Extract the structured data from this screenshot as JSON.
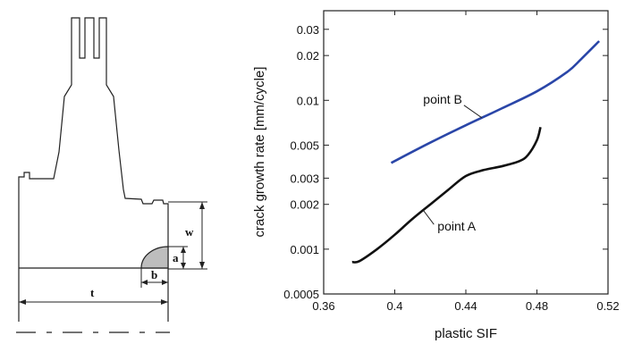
{
  "drawing": {
    "labels": {
      "w": "w",
      "a": "a",
      "b": "b",
      "t": "t"
    }
  },
  "chart_data": {
    "type": "line",
    "title": "",
    "xlabel": "plastic SIF",
    "ylabel": "crack growth rate [mm/cycle]",
    "xscale": "linear",
    "yscale": "log",
    "xlim": [
      0.36,
      0.52
    ],
    "ylim": [
      0.0005,
      0.04
    ],
    "x_ticks": [
      0.36,
      0.4,
      0.44,
      0.48,
      0.52
    ],
    "x_tick_labels": [
      "0.36",
      "0.4",
      "0.44",
      "0.48",
      "0.52"
    ],
    "y_ticks": [
      0.0005,
      0.001,
      0.002,
      0.003,
      0.005,
      0.01,
      0.02,
      0.03
    ],
    "y_tick_labels": [
      "0.0005",
      "0.001",
      "0.002",
      "0.003",
      "0.005",
      "0.01",
      "0.02",
      "0.03"
    ],
    "grid": false,
    "series": [
      {
        "name": "point B",
        "color": "#2a46a8",
        "x": [
          0.398,
          0.42,
          0.44,
          0.46,
          0.48,
          0.497,
          0.505,
          0.515
        ],
        "y": [
          0.0038,
          0.0052,
          0.0068,
          0.0088,
          0.0115,
          0.0155,
          0.019,
          0.025
        ]
      },
      {
        "name": "point A",
        "color": "#111111",
        "x": [
          0.376,
          0.38,
          0.39,
          0.4,
          0.41,
          0.42,
          0.43,
          0.44,
          0.45,
          0.46,
          0.47,
          0.475,
          0.48,
          0.482
        ],
        "y": [
          0.00082,
          0.00083,
          0.001,
          0.00125,
          0.0016,
          0.002,
          0.0025,
          0.0031,
          0.0034,
          0.0036,
          0.0039,
          0.0043,
          0.0054,
          0.0066
        ]
      }
    ],
    "annotations": [
      {
        "text": "point B",
        "series": 0,
        "x": 0.449
      },
      {
        "text": "point A",
        "series": 1,
        "x": 0.416
      }
    ]
  }
}
